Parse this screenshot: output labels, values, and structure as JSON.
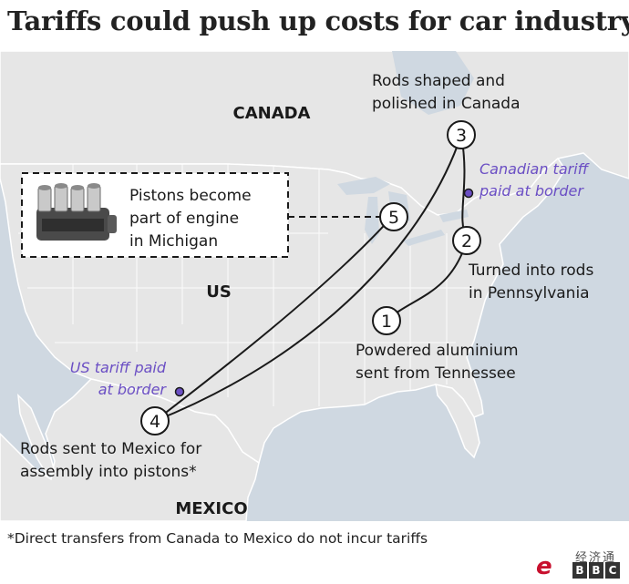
{
  "title": "Tariffs could push up costs for car industry",
  "regions": {
    "canada": "CANADA",
    "us": "US",
    "mexico": "MEXICO"
  },
  "steps": [
    {
      "num": "1",
      "label": [
        "Powdered aluminium",
        "sent from Tennessee"
      ]
    },
    {
      "num": "2",
      "label": [
        "Turned into rods",
        "in Pennsylvania"
      ]
    },
    {
      "num": "3",
      "label": [
        "Rods shaped and",
        "polished in Canada"
      ]
    },
    {
      "num": "4",
      "label": [
        "Rods sent to Mexico for",
        "assembly into pistons*"
      ]
    },
    {
      "num": "5",
      "label": [
        "Pistons become",
        "part of engine",
        "in Michigan"
      ]
    }
  ],
  "tariffs": {
    "canadian": [
      "Canadian tariff",
      "paid at border"
    ],
    "us": [
      "US tariff paid",
      "at border"
    ]
  },
  "footnote": "*Direct transfers from Canada to Mexico do not incur tariffs",
  "logo": {
    "cn": "经济通",
    "e": "e",
    "bbc": [
      "B",
      "B",
      "C"
    ]
  },
  "colors": {
    "land": "#e6e6e6",
    "water": "#cfd8e1",
    "border": "#ffffff",
    "route": "#1a1a1a",
    "tariff": "#6b4fc4"
  },
  "icons": {
    "engine": "engine-icon"
  }
}
